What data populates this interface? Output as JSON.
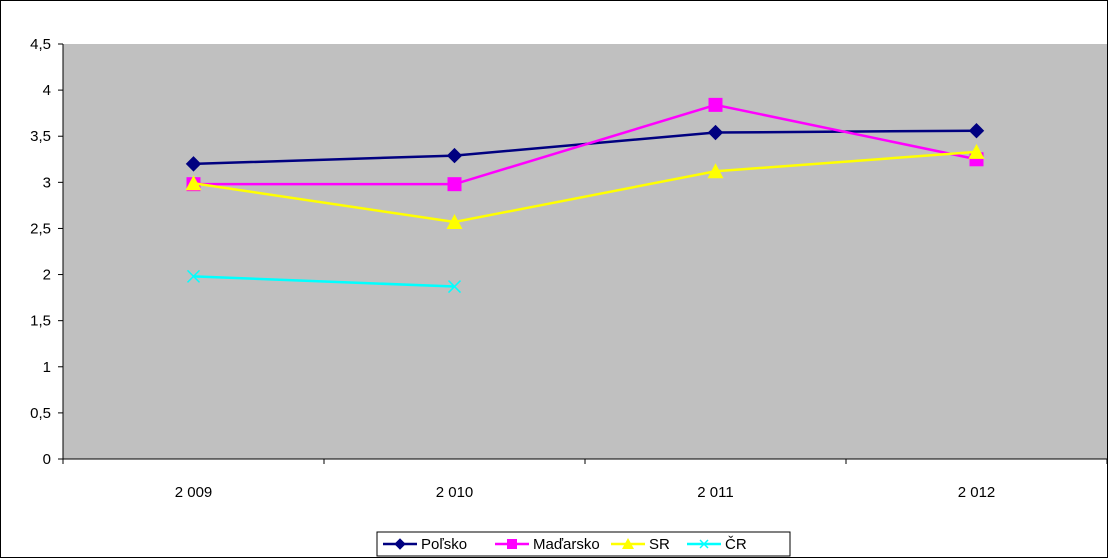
{
  "chart_data": {
    "type": "line",
    "categories": [
      "2 009",
      "2 010",
      "2 011",
      "2 012"
    ],
    "ylim": [
      0,
      4.5
    ],
    "yticks": [
      0,
      0.5,
      1,
      1.5,
      2,
      2.5,
      3,
      3.5,
      4,
      4.5
    ],
    "ytick_labels": [
      "0",
      "0,5",
      "1",
      "1,5",
      "2",
      "2,5",
      "3",
      "3,5",
      "4",
      "4,5"
    ],
    "grid": false,
    "plot_background": "#c0c0c0",
    "legend_position": "bottom",
    "series": [
      {
        "name": "Poľsko",
        "color": "#000080",
        "marker": "diamond",
        "values": [
          3.2,
          3.29,
          3.54,
          3.56
        ]
      },
      {
        "name": "Maďarsko",
        "color": "#ff00ff",
        "marker": "square",
        "values": [
          2.98,
          2.98,
          3.84,
          3.25
        ]
      },
      {
        "name": "SR",
        "color": "#ffff00",
        "marker": "triangle",
        "values": [
          2.99,
          2.57,
          3.12,
          3.33
        ]
      },
      {
        "name": "ČR",
        "color": "#00ffff",
        "marker": "x",
        "values": [
          1.98,
          1.87,
          null,
          null
        ]
      }
    ]
  }
}
